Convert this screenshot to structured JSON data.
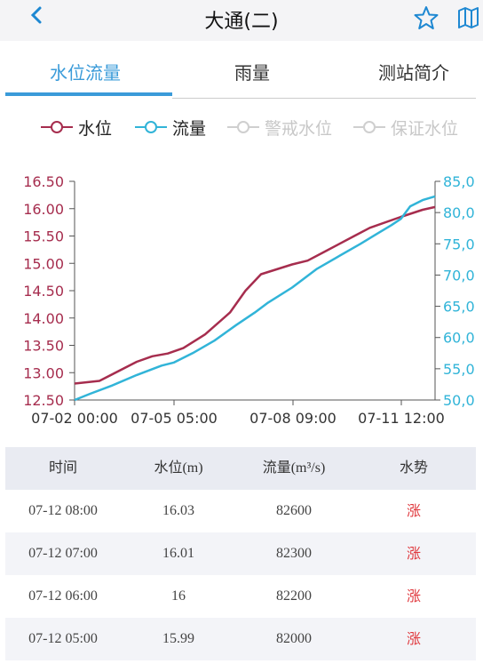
{
  "header": {
    "title": "大通(二)"
  },
  "tabs": [
    "水位流量",
    "雨量",
    "测站简介"
  ],
  "legend": [
    {
      "label": "水位",
      "color": "#a62d4e"
    },
    {
      "label": "流量",
      "color": "#31b4d8"
    },
    {
      "label": "警戒水位",
      "color": "#cfcfcf"
    },
    {
      "label": "保证水位",
      "color": "#cfcfcf"
    }
  ],
  "chart_data": {
    "type": "line",
    "x_ticks": [
      "07-02 00:00",
      "07-05 05:00",
      "07-08 09:00",
      "07-11 12:00"
    ],
    "y_left": {
      "ticks": [
        "12.50",
        "13.00",
        "13.50",
        "14.00",
        "14.50",
        "15.00",
        "15.50",
        "16.00",
        "16.50"
      ],
      "range": [
        12.5,
        16.5
      ],
      "color": "#a62d4e"
    },
    "y_right": {
      "ticks": [
        "50,0",
        "55,0",
        "60,0",
        "65,0",
        "70,0",
        "75,0",
        "80,0",
        "85,0"
      ],
      "range": [
        50000,
        85000
      ],
      "color": "#31b4d8"
    },
    "series": [
      {
        "name": "水位",
        "color": "#a62d4e",
        "points": [
          [
            0,
            12.8
          ],
          [
            0.08,
            12.85
          ],
          [
            0.2,
            13.2
          ],
          [
            0.25,
            13.3
          ],
          [
            0.3,
            13.35
          ],
          [
            0.35,
            13.45
          ],
          [
            0.42,
            13.7
          ],
          [
            0.5,
            14.1
          ],
          [
            0.55,
            14.5
          ],
          [
            0.6,
            14.8
          ],
          [
            0.7,
            14.98
          ],
          [
            0.75,
            15.05
          ],
          [
            0.8,
            15.2
          ],
          [
            0.9,
            15.5
          ],
          [
            0.95,
            15.65
          ],
          [
            1.05,
            15.85
          ],
          [
            1.12,
            15.98
          ],
          [
            1.16,
            16.03
          ]
        ]
      },
      {
        "name": "流量",
        "color": "#31b4d8",
        "points": [
          [
            0,
            50000
          ],
          [
            0.05,
            51000
          ],
          [
            0.12,
            52300
          ],
          [
            0.2,
            54000
          ],
          [
            0.28,
            55500
          ],
          [
            0.32,
            56000
          ],
          [
            0.38,
            57500
          ],
          [
            0.45,
            59500
          ],
          [
            0.52,
            62000
          ],
          [
            0.58,
            64000
          ],
          [
            0.62,
            65500
          ],
          [
            0.7,
            68000
          ],
          [
            0.78,
            71000
          ],
          [
            0.85,
            73000
          ],
          [
            0.92,
            75000
          ],
          [
            0.97,
            76500
          ],
          [
            1.02,
            78000
          ],
          [
            1.05,
            79000
          ],
          [
            1.08,
            81000
          ],
          [
            1.12,
            82000
          ],
          [
            1.16,
            82600
          ]
        ]
      }
    ]
  },
  "table": {
    "headers": [
      "时间",
      "水位(m)",
      "流量(m³/s)",
      "水势"
    ],
    "rows": [
      [
        "07-12 08:00",
        "16.03",
        "82600",
        "涨"
      ],
      [
        "07-12 07:00",
        "16.01",
        "82300",
        "涨"
      ],
      [
        "07-12 06:00",
        "16",
        "82200",
        "涨"
      ],
      [
        "07-12 05:00",
        "15.99",
        "82000",
        "涨"
      ]
    ]
  }
}
